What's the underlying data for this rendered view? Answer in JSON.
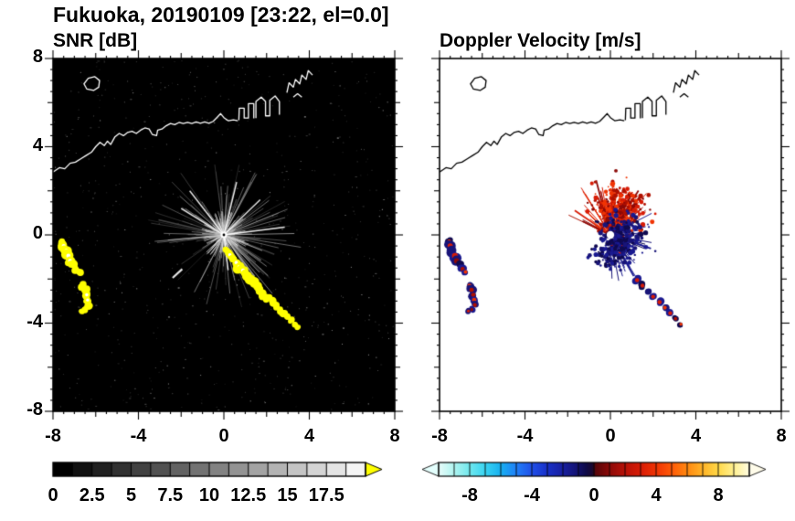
{
  "title": "Fukuoka, 20190109 [23:22, el=0.0]",
  "panels": {
    "snr": {
      "title": "SNR [dB]"
    },
    "velocity": {
      "title": "Doppler Velocity [m/s]"
    }
  },
  "chart_data": [
    {
      "type": "heatmap",
      "panel": "snr",
      "title": "SNR [dB]",
      "xlim": [
        -8,
        8
      ],
      "ylim": [
        -8,
        8
      ],
      "xticks": [
        -8,
        -4,
        0,
        4,
        8
      ],
      "yticks": [
        8,
        4,
        0,
        -4,
        -8
      ],
      "xtick_labels": [
        "-8",
        "-4",
        "0",
        "4",
        "8"
      ],
      "ytick_labels": [
        "8",
        "4",
        "0",
        "-4",
        "-8"
      ],
      "background": "#000000",
      "radar_center": [
        0,
        0
      ],
      "colorbar": {
        "range": [
          0,
          20
        ],
        "tick_values": [
          0,
          2.5,
          5,
          7.5,
          10,
          12.5,
          15,
          17.5
        ],
        "tick_labels": [
          "0",
          "2.5",
          "5",
          "7.5",
          "10",
          "12.5",
          "15",
          "17.5"
        ],
        "colormap": "grayscale",
        "over_color": "#ffff00"
      },
      "features": {
        "echo_color": "#ffff00",
        "echo_core_color": "#ffffff",
        "bright_rays": [
          [
            2.85,
            0.35
          ],
          [
            -1.6,
            2.0
          ],
          [
            0.6,
            2.4
          ],
          [
            1.7,
            1.6
          ],
          [
            -2.0,
            1.2
          ],
          [
            0.2,
            -1.6
          ]
        ],
        "isolated_streak": [
          [
            -2.4,
            -1.95
          ],
          [
            -1.95,
            -1.55
          ]
        ],
        "echo_arc_west": [
          [
            -7.55,
            -0.3,
            0.16
          ],
          [
            -7.5,
            -0.5,
            0.2
          ],
          [
            -7.38,
            -0.72,
            0.2
          ],
          [
            -7.28,
            -0.95,
            0.22
          ],
          [
            -7.2,
            -1.18,
            0.2
          ],
          [
            -7.08,
            -1.38,
            0.18
          ],
          [
            -6.92,
            -1.55,
            0.16
          ],
          [
            -6.78,
            -1.68,
            0.14
          ]
        ],
        "echo_arc_southwest": [
          [
            -6.6,
            -2.3,
            0.15
          ],
          [
            -6.5,
            -2.5,
            0.17
          ],
          [
            -6.42,
            -2.72,
            0.17
          ],
          [
            -6.38,
            -2.95,
            0.16
          ],
          [
            -6.35,
            -3.18,
            0.15
          ],
          [
            -6.5,
            -3.38,
            0.13
          ],
          [
            -6.65,
            -3.45,
            0.11
          ]
        ],
        "echo_chain_southeast": [
          [
            0.12,
            -0.72,
            0.13
          ],
          [
            0.28,
            -0.9,
            0.17
          ],
          [
            0.42,
            -1.08,
            0.19
          ],
          [
            0.58,
            -1.25,
            0.18
          ],
          [
            0.72,
            -1.45,
            0.2
          ],
          [
            0.9,
            -1.62,
            0.21
          ],
          [
            1.05,
            -1.82,
            0.2
          ],
          [
            1.22,
            -2.0,
            0.21
          ],
          [
            1.4,
            -2.18,
            0.2
          ],
          [
            1.55,
            -2.38,
            0.18
          ],
          [
            1.7,
            -2.55,
            0.19
          ],
          [
            1.88,
            -2.72,
            0.18
          ],
          [
            2.05,
            -2.9,
            0.17
          ],
          [
            2.25,
            -3.05,
            0.18
          ],
          [
            2.45,
            -3.22,
            0.16
          ],
          [
            2.6,
            -3.42,
            0.15
          ],
          [
            2.8,
            -3.52,
            0.16
          ],
          [
            2.98,
            -3.68,
            0.14
          ],
          [
            3.12,
            -3.88,
            0.13
          ],
          [
            3.3,
            -4.02,
            0.12
          ],
          [
            3.45,
            -4.15,
            0.11
          ]
        ]
      }
    },
    {
      "type": "heatmap",
      "panel": "velocity",
      "title": "Doppler Velocity [m/s]",
      "xlim": [
        -8,
        8
      ],
      "ylim": [
        -8,
        8
      ],
      "xticks": [
        -8,
        -4,
        0,
        4,
        8
      ],
      "xtick_labels": [
        "-8",
        "-4",
        "0",
        "4",
        "8"
      ],
      "background": "#ffffff",
      "radar_center": [
        0,
        0
      ],
      "colorbar": {
        "range": [
          -10,
          10
        ],
        "tick_values": [
          -8,
          -4,
          0,
          4,
          8
        ],
        "tick_labels": [
          "-8",
          "-4",
          "0",
          "4",
          "8"
        ],
        "colormap": "cyan-blue-navy-darkred-red-orange-yellow-white"
      },
      "features": {
        "away_color": "#d81c06",
        "toward_color": "#181478",
        "red_cluster": {
          "center": [
            0.35,
            1.15
          ],
          "sigma": 0.55,
          "count": 300
        },
        "navy_cluster": {
          "center": [
            0.55,
            -0.15
          ],
          "sigma": 0.5,
          "count": 260
        },
        "navy_cluster2": {
          "center": [
            -0.1,
            -0.95
          ],
          "sigma": 0.3,
          "count": 70
        },
        "red_rays": {
          "angle_center_deg": 90,
          "angle_spread_deg": 66,
          "count": 90,
          "max_len_km": 2.3
        },
        "navy_rays": {
          "angle_center_deg": -30,
          "angle_spread_deg": 62,
          "count": 70,
          "max_len_km": 2.0
        },
        "chain_southeast": [
          [
            1.25,
            -2.05,
            0.16
          ],
          [
            1.5,
            -2.3,
            0.15
          ],
          [
            1.75,
            -2.55,
            0.16
          ],
          [
            2.0,
            -2.8,
            0.15
          ],
          [
            2.3,
            -3.05,
            0.16
          ],
          [
            2.55,
            -3.3,
            0.14
          ],
          [
            2.8,
            -3.55,
            0.15
          ],
          [
            3.05,
            -3.8,
            0.13
          ],
          [
            3.3,
            -4.05,
            0.12
          ]
        ],
        "arc_west": [
          [
            -7.55,
            -0.3,
            0.16
          ],
          [
            -7.5,
            -0.5,
            0.2
          ],
          [
            -7.38,
            -0.72,
            0.2
          ],
          [
            -7.28,
            -0.95,
            0.22
          ],
          [
            -7.2,
            -1.18,
            0.2
          ],
          [
            -7.08,
            -1.38,
            0.18
          ],
          [
            -6.92,
            -1.55,
            0.16
          ],
          [
            -6.78,
            -1.68,
            0.14
          ]
        ],
        "arc_southwest": [
          [
            -6.6,
            -2.3,
            0.15
          ],
          [
            -6.5,
            -2.5,
            0.17
          ],
          [
            -6.42,
            -2.72,
            0.17
          ],
          [
            -6.38,
            -2.95,
            0.16
          ],
          [
            -6.35,
            -3.18,
            0.15
          ],
          [
            -6.5,
            -3.38,
            0.13
          ],
          [
            -6.65,
            -3.45,
            0.11
          ]
        ]
      }
    }
  ],
  "coastline": {
    "color_on_snr": "#ffffff",
    "color_on_velocity": "#000000",
    "main": [
      [
        -8.0,
        2.85
      ],
      [
        -7.7,
        3.05
      ],
      [
        -7.45,
        3.0
      ],
      [
        -7.2,
        3.25
      ],
      [
        -6.95,
        3.3
      ],
      [
        -6.7,
        3.45
      ],
      [
        -6.45,
        3.6
      ],
      [
        -6.2,
        3.75
      ],
      [
        -6.0,
        4.0
      ],
      [
        -5.8,
        4.2
      ],
      [
        -5.6,
        4.05
      ],
      [
        -5.45,
        4.25
      ],
      [
        -5.3,
        4.1
      ],
      [
        -5.1,
        4.45
      ],
      [
        -4.9,
        4.6
      ],
      [
        -4.7,
        4.5
      ],
      [
        -4.5,
        4.65
      ],
      [
        -4.3,
        4.7
      ],
      [
        -4.1,
        4.6
      ],
      [
        -3.9,
        4.75
      ],
      [
        -3.7,
        4.85
      ],
      [
        -3.5,
        4.8
      ],
      [
        -3.35,
        4.55
      ],
      [
        -3.15,
        4.5
      ],
      [
        -3.1,
        4.75
      ],
      [
        -2.9,
        4.8
      ],
      [
        -2.7,
        4.95
      ],
      [
        -2.5,
        5.05
      ],
      [
        -2.3,
        5.0
      ],
      [
        -2.1,
        5.1
      ],
      [
        -1.9,
        5.05
      ],
      [
        -1.7,
        5.1
      ],
      [
        -1.5,
        5.05
      ],
      [
        -1.3,
        5.12
      ],
      [
        -1.1,
        5.06
      ],
      [
        -0.9,
        5.12
      ],
      [
        -0.7,
        5.06
      ],
      [
        -0.5,
        5.15
      ],
      [
        -0.3,
        5.35
      ],
      [
        -0.15,
        5.5
      ],
      [
        0.0,
        5.32
      ],
      [
        0.2,
        5.18
      ],
      [
        0.45,
        5.22
      ],
      [
        0.65,
        5.18
      ]
    ],
    "piers": [
      [
        [
          0.7,
          5.2
        ],
        [
          0.72,
          5.75
        ],
        [
          0.95,
          5.75
        ],
        [
          0.95,
          5.3
        ],
        [
          1.15,
          5.3
        ],
        [
          1.15,
          5.95
        ],
        [
          1.4,
          5.95
        ],
        [
          1.4,
          5.28
        ]
      ],
      [
        [
          1.5,
          5.3
        ],
        [
          1.5,
          6.05
        ],
        [
          1.75,
          6.25
        ],
        [
          1.95,
          6.05
        ],
        [
          1.95,
          5.4
        ],
        [
          2.15,
          5.4
        ],
        [
          2.15,
          6.1
        ],
        [
          2.4,
          6.3
        ],
        [
          2.6,
          6.05
        ],
        [
          2.6,
          5.45
        ]
      ]
    ],
    "northeast_shapes": [
      [
        [
          2.95,
          6.45
        ],
        [
          3.05,
          6.9
        ],
        [
          3.25,
          6.7
        ],
        [
          3.35,
          7.05
        ],
        [
          3.55,
          6.85
        ],
        [
          3.65,
          7.25
        ],
        [
          3.85,
          7.05
        ],
        [
          3.95,
          7.45
        ],
        [
          4.15,
          7.25
        ]
      ],
      [
        [
          3.25,
          6.25
        ],
        [
          3.45,
          6.4
        ],
        [
          3.65,
          6.25
        ]
      ]
    ],
    "island": [
      [
        -6.55,
        6.85
      ],
      [
        -6.35,
        7.1
      ],
      [
        -6.05,
        7.18
      ],
      [
        -5.82,
        7.0
      ],
      [
        -5.86,
        6.7
      ],
      [
        -6.1,
        6.55
      ],
      [
        -6.42,
        6.62
      ]
    ]
  }
}
